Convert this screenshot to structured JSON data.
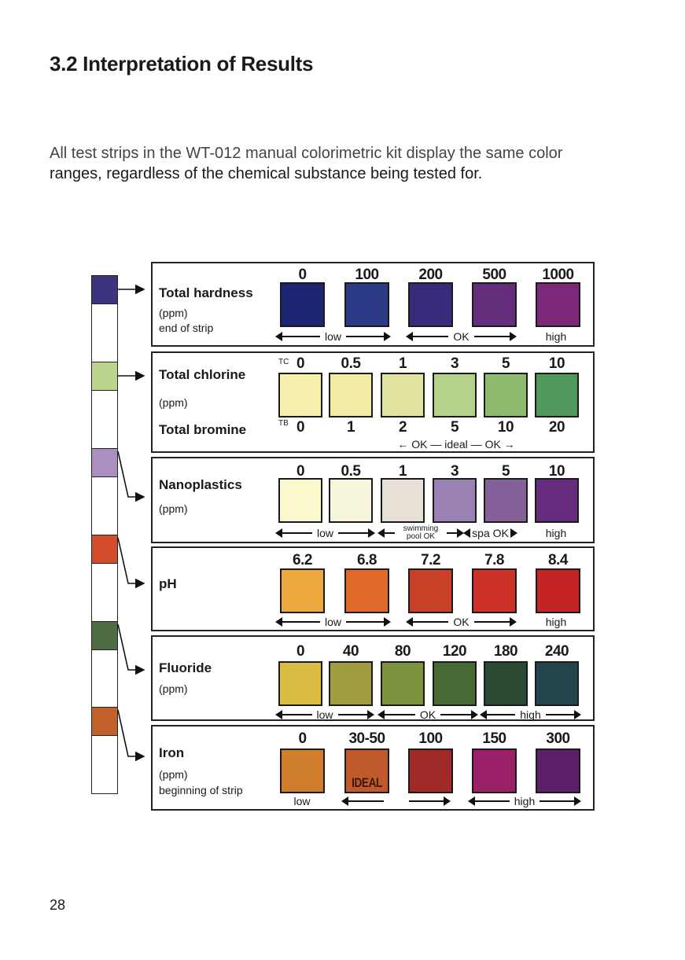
{
  "heading": "3.2 Interpretation of Results",
  "paragraph": {
    "line1": "All test strips in the WT-012 manual colorimetric kit display the same color",
    "line2": "ranges, regardless of the chemical substance being tested for."
  },
  "page_number": "28",
  "strip": {
    "pad_colors": [
      "#3b3480",
      "#bdd48c",
      "#ab8fc0",
      "#d34d2c",
      "#4f6d45",
      "#c2602c"
    ]
  },
  "panels": [
    {
      "title": "Total hardness",
      "unit": "(ppm)",
      "note": "end of strip",
      "values": [
        "0",
        "100",
        "200",
        "500",
        "1000"
      ],
      "colors": [
        "#1c2673",
        "#2b3b86",
        "#372b7c",
        "#632d7c",
        "#7c2878"
      ],
      "ranges": [
        "low",
        "OK",
        "high"
      ]
    },
    {
      "title": "Total chlorine",
      "unit": "(ppm)",
      "title2": "Total bromine",
      "tc_label": "TC",
      "tb_label": "TB",
      "values": [
        "0",
        "0.5",
        "1",
        "3",
        "5",
        "10"
      ],
      "values2": [
        "0",
        "1",
        "2",
        "5",
        "10",
        "20"
      ],
      "colors": [
        "#f5f0ae",
        "#f0eca6",
        "#e2e3a0",
        "#b5d18a",
        "#8fbb6e",
        "#4f9a5b"
      ],
      "ranges": [
        "← OK — ideal — OK →"
      ]
    },
    {
      "title": "Nanoplastics",
      "unit": "(ppm)",
      "values": [
        "0",
        "0.5",
        "1",
        "3",
        "5",
        "10"
      ],
      "colors": [
        "#fbf9cd",
        "#f7f5dc",
        "#e6e0d6",
        "#9a82b4",
        "#866199",
        "#652b7c"
      ],
      "ranges": [
        "low",
        "swimming pool OK",
        "spa OK",
        "high"
      ]
    },
    {
      "title": "pH",
      "values": [
        "6.2",
        "6.8",
        "7.2",
        "7.8",
        "8.4"
      ],
      "colors": [
        "#eba83e",
        "#df6a2a",
        "#c94028",
        "#cc3228",
        "#c42426"
      ],
      "ranges": [
        "low",
        "OK",
        "high"
      ]
    },
    {
      "title": "Fluoride",
      "unit": "(ppm)",
      "values": [
        "0",
        "40",
        "80",
        "120",
        "180",
        "240"
      ],
      "colors": [
        "#dbbd44",
        "#a29d40",
        "#7d933e",
        "#486a35",
        "#2b4a34",
        "#22444a"
      ],
      "ranges": [
        "low",
        "OK",
        "high"
      ]
    },
    {
      "title": "Iron",
      "unit": "(ppm)",
      "note": "beginning of strip",
      "values": [
        "0",
        "30-50",
        "100",
        "150",
        "300"
      ],
      "colors": [
        "#d07d2c",
        "#c05a2c",
        "#a02a28",
        "#9c2068",
        "#5c2068"
      ],
      "badge": "IDEAL",
      "ranges": [
        "low",
        "",
        "",
        "high"
      ]
    }
  ]
}
